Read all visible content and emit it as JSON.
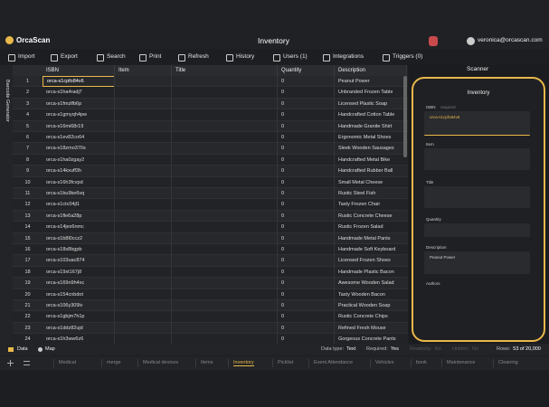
{
  "header": {
    "logo": "OrcaScan",
    "title": "Inventory",
    "user": "veronica@orcascan.com"
  },
  "toolbar": [
    "Import",
    "Export",
    "Search",
    "Print",
    "Refresh",
    "History",
    "Users (1)",
    "Integrations",
    "Triggers (0)"
  ],
  "side_label": "Barcode Generator",
  "table": {
    "columns": [
      "ISBN",
      "Item",
      "Title",
      "Quantity",
      "Description"
    ],
    "rows": [
      {
        "num": 1,
        "isbn": "orca-s1cpfo84v6",
        "quantity": 0,
        "description": "Peanut Power"
      },
      {
        "num": 2,
        "isbn": "orca-s1ha4radj7",
        "quantity": 0,
        "description": "Unbranded Frozen Table"
      },
      {
        "num": 3,
        "isbn": "orca-s1fmzlfb6p",
        "quantity": 0,
        "description": "Licensed Plastic Soap"
      },
      {
        "num": 4,
        "isbn": "orca-s1gmyqh4pw",
        "quantity": 0,
        "description": "Handcrafted Cotton Table"
      },
      {
        "num": 5,
        "isbn": "orca-s16mi68r19",
        "quantity": 0,
        "description": "Handmade Granite Shirt"
      },
      {
        "num": 6,
        "isbn": "orca-s1ev82co64",
        "quantity": 0,
        "description": "Ergonomic Metal Shoes"
      },
      {
        "num": 7,
        "isbn": "orca-s18zmo370s",
        "quantity": 0,
        "description": "Sleek Wooden Sausages"
      },
      {
        "num": 8,
        "isbn": "orca-s1ha0zgay2",
        "quantity": 0,
        "description": "Handcrafted Metal Bike"
      },
      {
        "num": 9,
        "isbn": "orca-s14kxuff3h",
        "quantity": 0,
        "description": "Handcrafted Rubber Ball"
      },
      {
        "num": 10,
        "isbn": "orca-s16h3fcvpd",
        "quantity": 0,
        "description": "Small Metal Cheese"
      },
      {
        "num": 11,
        "isbn": "orca-s1bu9ke6vq",
        "quantity": 0,
        "description": "Rustic Steel Fish"
      },
      {
        "num": 12,
        "isbn": "orca-s1ctc04jl1",
        "quantity": 0,
        "description": "Tasty Frozen Chair"
      },
      {
        "num": 13,
        "isbn": "orca-s1fle6a28p",
        "quantity": 0,
        "description": "Rustic Concrete Cheese"
      },
      {
        "num": 14,
        "isbn": "orca-s14jex6nmc",
        "quantity": 0,
        "description": "Rustic Frozen Salad"
      },
      {
        "num": 15,
        "isbn": "orca-s1b8l0ccz2",
        "quantity": 0,
        "description": "Handmade Metal Pants"
      },
      {
        "num": 16,
        "isbn": "orca-s18s8bgpb",
        "quantity": 0,
        "description": "Handmade Soft Keyboard"
      },
      {
        "num": 17,
        "isbn": "orca-s103uac874",
        "quantity": 0,
        "description": "Licensed Frozen Shoes"
      },
      {
        "num": 18,
        "isbn": "orca-s19xt167j8",
        "quantity": 0,
        "description": "Handmade Plastic Bacon"
      },
      {
        "num": 19,
        "isbn": "orca-s169n9h4xc",
        "quantity": 0,
        "description": "Awesome Wooden Salad"
      },
      {
        "num": 20,
        "isbn": "orca-s154cnbdot",
        "quantity": 0,
        "description": "Tasty Wooden Bacon"
      },
      {
        "num": 21,
        "isbn": "orca-s106y309lv",
        "quantity": 0,
        "description": "Practical Wooden Soap"
      },
      {
        "num": 22,
        "isbn": "orca-s1gbjm7h1p",
        "quantity": 0,
        "description": "Rustic Concrete Chips"
      },
      {
        "num": 23,
        "isbn": "orca-s1ddz82ujd",
        "quantity": 0,
        "description": "Refined Fresh Mouse"
      },
      {
        "num": 24,
        "isbn": "orca-s1h3ww6z6",
        "quantity": 0,
        "description": "Gorgeous Concrete Pants"
      }
    ]
  },
  "scanner": {
    "title": "Scanner",
    "form_title": "Inventory",
    "fields": [
      {
        "label": "ISBN",
        "hint": "required",
        "value": "orca-s1cpfo84v6"
      },
      {
        "label": "Item"
      },
      {
        "label": "Title"
      },
      {
        "label": "Quantity"
      },
      {
        "label": "Description",
        "value": "Peanut Power"
      },
      {
        "label": "Authors"
      }
    ]
  },
  "status": {
    "views": [
      "Data",
      "Map"
    ],
    "items": [
      {
        "label": "Data type:",
        "value": "Text"
      },
      {
        "label": "Required:",
        "value": "Yes"
      },
      {
        "label": "Readonly:",
        "value": "No"
      },
      {
        "label": "Hidden:",
        "value": "No"
      },
      {
        "label": "Rows:",
        "value": "53 of 20,000"
      }
    ]
  },
  "tabs": [
    "Medical",
    "merge",
    "Medical devices",
    "Items",
    "Inventory",
    "Picklist",
    "Event Attendance",
    "Vehicles",
    "book",
    "Maintenance",
    "Cleaning"
  ],
  "active_tab": 4
}
